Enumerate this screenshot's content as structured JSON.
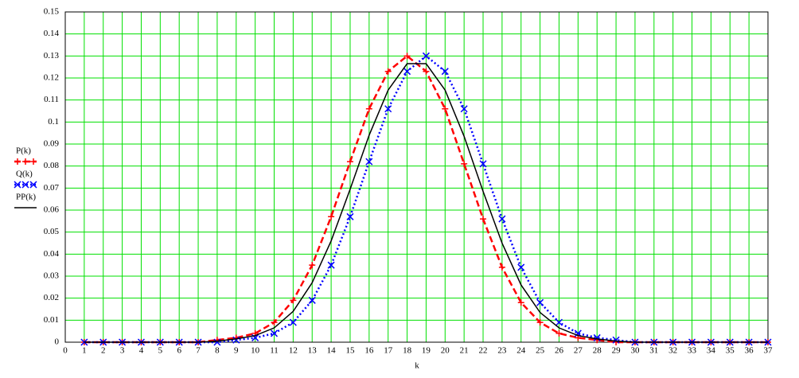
{
  "chart_data": {
    "type": "line",
    "xlabel": "k",
    "x": [
      1,
      2,
      3,
      4,
      5,
      6,
      7,
      8,
      9,
      10,
      11,
      12,
      13,
      14,
      15,
      16,
      17,
      18,
      19,
      20,
      21,
      22,
      23,
      24,
      25,
      26,
      27,
      28,
      29,
      30,
      31,
      32,
      33,
      34,
      35,
      36,
      37
    ],
    "series": [
      {
        "name": "P(k)",
        "color": "#ff0000",
        "style": "dashed",
        "marker": "+",
        "values": [
          0,
          0,
          0,
          0,
          0,
          0,
          0,
          0.001,
          0.002,
          0.004,
          0.009,
          0.019,
          0.035,
          0.057,
          0.082,
          0.106,
          0.123,
          0.13,
          0.123,
          0.106,
          0.081,
          0.056,
          0.034,
          0.018,
          0.009,
          0.004,
          0.002,
          0.001,
          0,
          0,
          0,
          0,
          0,
          0,
          0,
          0,
          0
        ]
      },
      {
        "name": "Q(k)",
        "color": "#0000ff",
        "style": "dotted",
        "marker": "x",
        "values": [
          0,
          0,
          0,
          0,
          0,
          0,
          0,
          0,
          0.001,
          0.002,
          0.004,
          0.009,
          0.019,
          0.035,
          0.057,
          0.082,
          0.106,
          0.123,
          0.13,
          0.123,
          0.106,
          0.081,
          0.056,
          0.034,
          0.018,
          0.009,
          0.004,
          0.002,
          0.001,
          0,
          0,
          0,
          0,
          0,
          0,
          0,
          0
        ]
      },
      {
        "name": "PP(k)",
        "color": "#000000",
        "style": "solid",
        "values": [
          0,
          0,
          0,
          0,
          0,
          0,
          0,
          0.0005,
          0.0015,
          0.003,
          0.0065,
          0.014,
          0.027,
          0.046,
          0.0695,
          0.094,
          0.1145,
          0.1265,
          0.1265,
          0.1145,
          0.0935,
          0.0685,
          0.045,
          0.026,
          0.0135,
          0.0065,
          0.003,
          0.0015,
          0.0005,
          0,
          0,
          0,
          0,
          0,
          0,
          0,
          0
        ]
      }
    ],
    "xlim": [
      0,
      37
    ],
    "xticks": [
      0,
      1,
      2,
      3,
      4,
      5,
      6,
      7,
      8,
      9,
      10,
      11,
      12,
      13,
      14,
      15,
      16,
      17,
      18,
      19,
      20,
      21,
      22,
      23,
      24,
      25,
      26,
      27,
      28,
      29,
      30,
      31,
      32,
      33,
      34,
      35,
      36,
      37
    ],
    "ylim": [
      0,
      0.15
    ],
    "yticks": [
      0,
      0.01,
      0.02,
      0.03,
      0.04,
      0.05,
      0.06,
      0.07,
      0.08,
      0.09,
      0.1,
      0.11,
      0.12,
      0.13,
      0.14,
      0.15
    ],
    "grid": true,
    "grid_color": "#00e000",
    "legend": "left"
  }
}
